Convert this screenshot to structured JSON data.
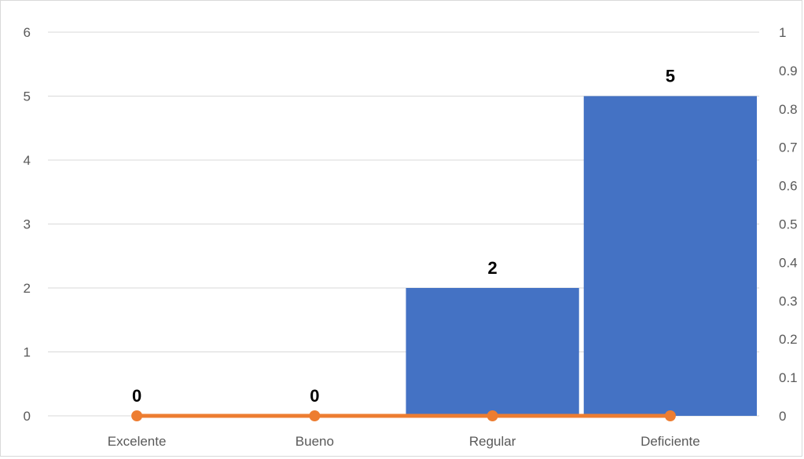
{
  "chart_data": {
    "type": "bar",
    "categories": [
      "Excelente",
      "Bueno",
      "Regular",
      "Deficiente"
    ],
    "series": [
      {
        "type": "bar",
        "values": [
          0,
          0,
          2,
          5
        ],
        "color": "#4472C4",
        "data_labels": [
          "0",
          "0",
          "2",
          "5"
        ]
      },
      {
        "type": "line",
        "axis": "secondary",
        "values": [
          0,
          0,
          0,
          0
        ],
        "color": "#ED7D31"
      }
    ],
    "y_primary": {
      "ylim": [
        0,
        6
      ],
      "ticks": [
        "0",
        "1",
        "2",
        "3",
        "4",
        "5",
        "6"
      ]
    },
    "y_secondary": {
      "ylim": [
        0,
        1
      ],
      "ticks": [
        "0",
        "0.1",
        "0.2",
        "0.3",
        "0.4",
        "0.5",
        "0.6",
        "0.7",
        "0.8",
        "0.9",
        "1"
      ]
    },
    "gridlines": true,
    "legend": "none"
  }
}
